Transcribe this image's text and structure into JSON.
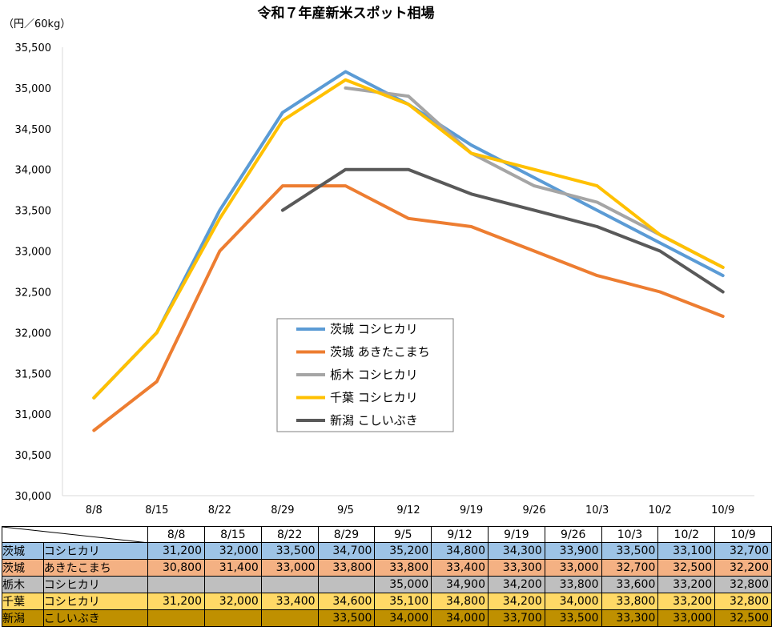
{
  "chart_data": {
    "type": "line",
    "title": "令和７年産新米スポット相場",
    "ylabel": "（円／60kg）",
    "xlabel": "",
    "ylim": [
      30000,
      35500
    ],
    "ytick_step": 500,
    "categories": [
      "8/8",
      "8/15",
      "8/22",
      "8/29",
      "9/5",
      "9/12",
      "9/19",
      "9/26",
      "10/3",
      "10/2",
      "10/9"
    ],
    "series": [
      {
        "name": "茨城 コシヒカリ",
        "color": "#5b9bd5",
        "values": [
          31200,
          32000,
          33500,
          34700,
          35200,
          34800,
          34300,
          33900,
          33500,
          33100,
          32700
        ]
      },
      {
        "name": "茨城 あきたこまち",
        "color": "#ed7d31",
        "values": [
          30800,
          31400,
          33000,
          33800,
          33800,
          33400,
          33300,
          33000,
          32700,
          32500,
          32200
        ]
      },
      {
        "name": "栃木 コシヒカリ",
        "color": "#a5a5a5",
        "values": [
          null,
          null,
          null,
          null,
          35000,
          34900,
          34200,
          33800,
          33600,
          33200,
          32800
        ]
      },
      {
        "name": "千葉 コシヒカリ",
        "color": "#ffc000",
        "values": [
          31200,
          32000,
          33400,
          34600,
          35100,
          34800,
          34200,
          34000,
          33800,
          33200,
          32800
        ]
      },
      {
        "name": "新潟 こしいぶき",
        "color": "#595959",
        "values": [
          null,
          null,
          null,
          33500,
          34000,
          34000,
          33700,
          33500,
          33300,
          33000,
          32500
        ]
      }
    ],
    "legend_position": "center",
    "grid": false
  },
  "table": {
    "headers": [
      "8/8",
      "8/15",
      "8/22",
      "8/29",
      "9/5",
      "9/12",
      "9/19",
      "9/26",
      "10/3",
      "10/2",
      "10/9"
    ],
    "rows": [
      {
        "pref": "茨城",
        "variety": "コシヒカリ",
        "bg": "#9dc3e6",
        "cells": [
          "31,200",
          "32,000",
          "33,500",
          "34,700",
          "35,200",
          "34,800",
          "34,300",
          "33,900",
          "33,500",
          "33,100",
          "32,700"
        ]
      },
      {
        "pref": "茨城",
        "variety": "あきたこまち",
        "bg": "#f4b183",
        "cells": [
          "30,800",
          "31,400",
          "33,000",
          "33,800",
          "33,800",
          "33,400",
          "33,300",
          "33,000",
          "32,700",
          "32,500",
          "32,200"
        ]
      },
      {
        "pref": "栃木",
        "variety": "コシヒカリ",
        "bg": "#bfbfbf",
        "cells": [
          "",
          "",
          "",
          "",
          "35,000",
          "34,900",
          "34,200",
          "33,800",
          "33,600",
          "33,200",
          "32,800"
        ]
      },
      {
        "pref": "千葉",
        "variety": "コシヒカリ",
        "bg": "#ffd966",
        "cells": [
          "31,200",
          "32,000",
          "33,400",
          "34,600",
          "35,100",
          "34,800",
          "34,200",
          "34,000",
          "33,800",
          "33,200",
          "32,800"
        ]
      },
      {
        "pref": "新潟",
        "variety": "こしいぶき",
        "bg": "#bf9000",
        "cells": [
          "",
          "",
          "",
          "33,500",
          "34,000",
          "34,000",
          "33,700",
          "33,500",
          "33,300",
          "33,000",
          "32,500"
        ]
      }
    ]
  }
}
